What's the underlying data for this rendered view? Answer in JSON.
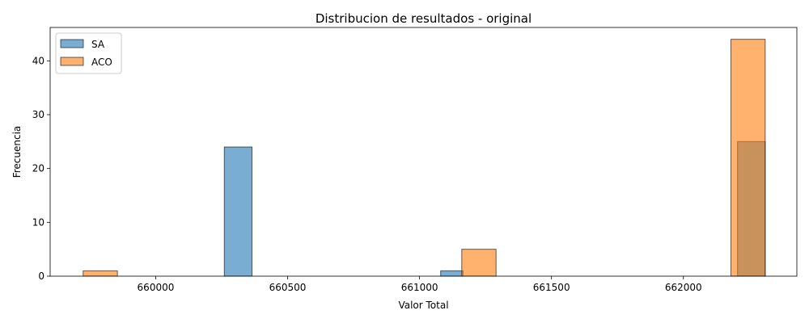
{
  "chart_data": {
    "type": "bar",
    "title": "Distribucion de resultados - original",
    "xlabel": "Valor Total",
    "ylabel": "Frecuencia",
    "xlim": [
      659600,
      662430
    ],
    "ylim": [
      0,
      46.2
    ],
    "xticks": [
      660000,
      660500,
      661000,
      661500,
      662000
    ],
    "yticks": [
      0,
      10,
      20,
      30,
      40
    ],
    "grid": false,
    "legend_position": "top-left",
    "series": [
      {
        "name": "SA",
        "color": "#1f77b4",
        "bins": [
          {
            "x0": 660260,
            "x1": 660365,
            "count": 24
          },
          {
            "x0": 661080,
            "x1": 661165,
            "count": 1
          },
          {
            "x0": 662205,
            "x1": 662310,
            "count": 25
          }
        ]
      },
      {
        "name": "ACO",
        "color": "#ff7f0e",
        "bins": [
          {
            "x0": 659725,
            "x1": 659855,
            "count": 1
          },
          {
            "x0": 661160,
            "x1": 661290,
            "count": 5
          },
          {
            "x0": 662180,
            "x1": 662310,
            "count": 44
          }
        ]
      }
    ]
  }
}
